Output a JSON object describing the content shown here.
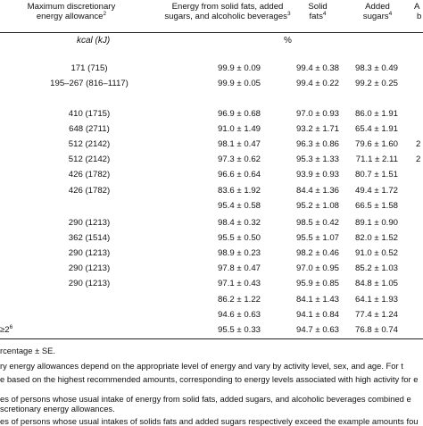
{
  "headers": {
    "col1_line1": "Maximum discretionary",
    "col1_line2": "energy allowance",
    "col1_sup": "2",
    "col2_line1": "Energy from solid fats, added",
    "col2_line2": "sugars, and alcoholic beverages",
    "col2_sup": "3",
    "col3_line1": "Solid",
    "col3_line2": "fats",
    "col3_sup": "4",
    "col4_line1": "Added",
    "col4_line2": "sugars",
    "col4_sup": "4",
    "col5_partial": "A",
    "col5_partial2": "b"
  },
  "units": {
    "allowance": "kcal (kJ)",
    "percent": "%"
  },
  "groups": [
    {
      "rows": [
        {
          "allowance": "171 (715)",
          "energy": "99.9 ± 0.09",
          "solid": "99.4 ± 0.38",
          "sugar": "98.3 ± 0.49",
          "extra": ""
        },
        {
          "allowance": "195–267 (816–1117)",
          "energy": "99.9 ± 0.05",
          "solid": "99.4 ± 0.22",
          "sugar": "99.2 ± 0.25",
          "extra": ""
        }
      ]
    },
    {
      "rows": [
        {
          "allowance": "410 (1715)",
          "energy": "96.9 ± 0.68",
          "solid": "97.0 ± 0.93",
          "sugar": "86.0 ± 1.91",
          "extra": ""
        },
        {
          "allowance": "648 (2711)",
          "energy": "91.0 ± 1.49",
          "solid": "93.2 ± 1.71",
          "sugar": "65.4 ± 1.91",
          "extra": ""
        },
        {
          "allowance": "512 (2142)",
          "energy": "98.1 ± 0.47",
          "solid": "96.3 ± 0.86",
          "sugar": "79.6 ± 1.60",
          "extra": "2"
        },
        {
          "allowance": "512 (2142)",
          "energy": "97.3 ± 0.62",
          "solid": "95.3 ± 1.33",
          "sugar": "71.1 ± 2.11",
          "extra": "2"
        },
        {
          "allowance": "426 (1782)",
          "energy": "96.6 ± 0.64",
          "solid": "93.9 ± 0.93",
          "sugar": "80.7 ± 1.51",
          "extra": ""
        },
        {
          "allowance": "426 (1782)",
          "energy": "83.6 ± 1.92",
          "solid": "84.4 ± 1.36",
          "sugar": "49.4 ± 1.72",
          "extra": ""
        },
        {
          "allowance": "",
          "energy": "95.4 ± 0.58",
          "solid": "95.2 ± 1.08",
          "sugar": "66.5 ± 1.58",
          "extra": ""
        }
      ]
    },
    {
      "rows": [
        {
          "allowance": "290 (1213)",
          "energy": "98.4 ± 0.32",
          "solid": "98.5 ± 0.42",
          "sugar": "89.1 ± 0.90",
          "extra": ""
        },
        {
          "allowance": "362 (1514)",
          "energy": "95.5 ± 0.50",
          "solid": "95.5 ± 1.07",
          "sugar": "82.0 ± 1.52",
          "extra": ""
        },
        {
          "allowance": "290 (1213)",
          "energy": "98.9 ± 0.23",
          "solid": "98.2 ± 0.46",
          "sugar": "91.0 ± 0.52",
          "extra": ""
        },
        {
          "allowance": "290 (1213)",
          "energy": "97.8 ± 0.47",
          "solid": "97.0 ± 0.95",
          "sugar": "85.2 ± 1.03",
          "extra": ""
        },
        {
          "allowance": "290 (1213)",
          "energy": "97.1 ± 0.43",
          "solid": "95.9 ± 0.85",
          "sugar": "84.8 ± 1.05",
          "extra": ""
        },
        {
          "allowance": "",
          "energy": "86.2 ± 1.22",
          "solid": "84.1 ± 1.43",
          "sugar": "64.1 ± 1.93",
          "extra": ""
        },
        {
          "allowance": "",
          "energy": "94.6 ± 0.63",
          "solid": "94.1 ± 0.84",
          "sugar": "77.4 ± 1.24",
          "extra": ""
        },
        {
          "allowance": "",
          "energy": "95.5 ± 0.33",
          "solid": "94.7 ± 0.63",
          "sugar": "76.8 ± 0.74",
          "extra": ""
        }
      ]
    }
  ],
  "last_row_label": "≥2",
  "last_row_label_sup": "6",
  "notes": [
    "rcentage ± SE.",
    "ry energy allowances depend on the appropriate level of energy and vary by activity level, sex, and age. For t",
    "e based on the highest recommended amounts, corresponding to energy levels associated with high activity for e",
    "es of persons whose usual intake of energy from solid fats, added sugars, and alcoholic beverages combined e",
    "scretionary energy allowances.",
    "es of persons whose usual intakes of solids fats and added sugars respectively exceed the example amounts fou"
  ]
}
